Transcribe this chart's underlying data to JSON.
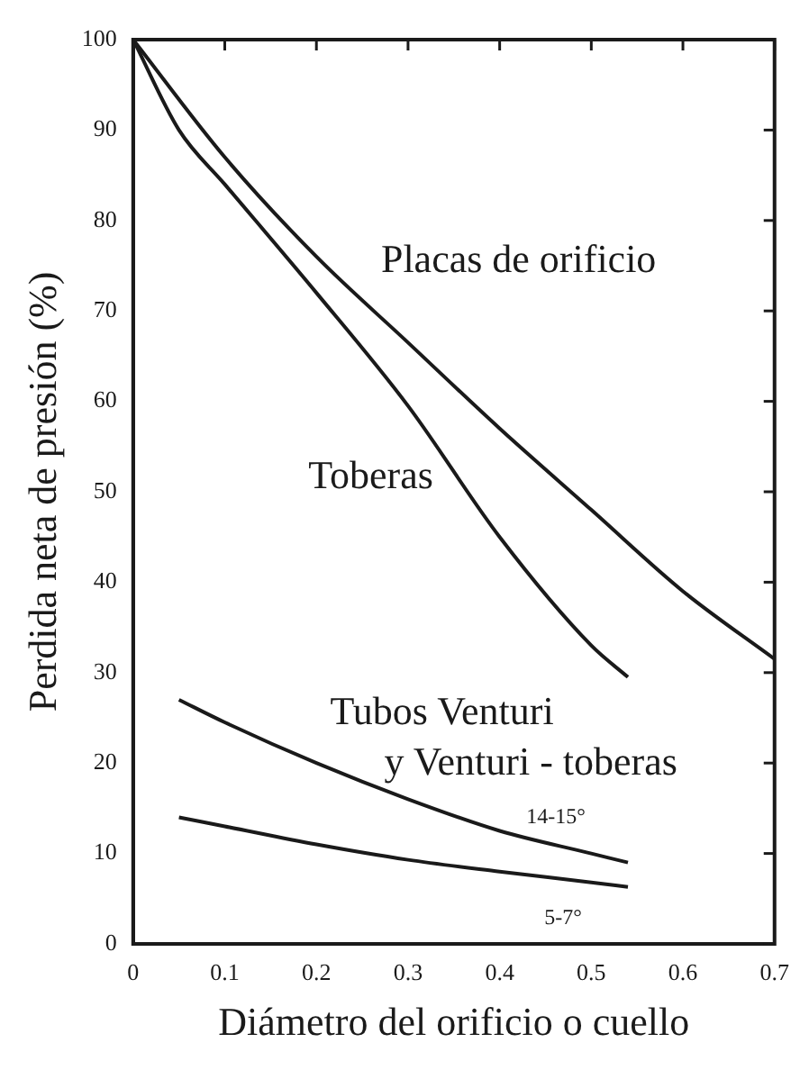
{
  "chart_data": {
    "type": "line",
    "xlabel": "Diámetro del orificio o cuello",
    "ylabel": "Perdida neta de presión (%)",
    "series": [
      {
        "name": "Placas de orificio",
        "color": "#1a1a1a",
        "x": [
          0,
          0.1,
          0.2,
          0.3,
          0.4,
          0.5,
          0.6,
          0.7
        ],
        "values": [
          100,
          87,
          76,
          66.5,
          57,
          48,
          39,
          31.5
        ]
      },
      {
        "name": "Toberas",
        "color": "#1a1a1a",
        "x": [
          0,
          0.05,
          0.1,
          0.2,
          0.3,
          0.4,
          0.5,
          0.54
        ],
        "values": [
          100,
          90,
          84,
          72,
          59.5,
          45,
          33,
          29.5
        ]
      },
      {
        "name": "14-15°",
        "color": "#1a1a1a",
        "x": [
          0.05,
          0.1,
          0.2,
          0.3,
          0.4,
          0.5,
          0.54
        ],
        "values": [
          27,
          24.5,
          20,
          16,
          12.5,
          10,
          9
        ]
      },
      {
        "name": "5-7°",
        "color": "#1a1a1a",
        "x": [
          0.05,
          0.1,
          0.2,
          0.3,
          0.4,
          0.5,
          0.54
        ],
        "values": [
          14,
          13,
          11,
          9.3,
          8,
          6.8,
          6.3
        ]
      }
    ],
    "annotations": [
      "Tubos Venturi\ny Venturi - toberas"
    ],
    "xlim": [
      0,
      0.7
    ],
    "xticks": [
      0,
      0.1,
      0.2,
      0.3,
      0.4,
      0.5,
      0.6,
      0.7
    ],
    "ylim": [
      0,
      100
    ],
    "yticks": [
      0,
      10,
      20,
      30,
      40,
      50,
      60,
      70,
      80,
      90,
      100
    ],
    "grid": false,
    "legend": false,
    "marker": "none",
    "line_style": "solid"
  }
}
